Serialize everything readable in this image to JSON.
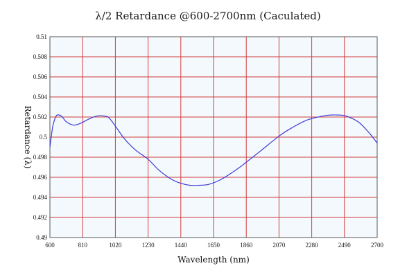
{
  "chart_data": {
    "type": "line",
    "title": "λ/2 Retardance @600-2700nm (Caculated)",
    "xlabel": "Wavelength (nm)",
    "ylabel": "Retardance (λ)",
    "xlim": [
      600,
      2700
    ],
    "ylim": [
      0.49,
      0.51
    ],
    "x_ticks": [
      600,
      810,
      1020,
      1230,
      1440,
      1650,
      1860,
      2070,
      2280,
      2490,
      2700
    ],
    "y_ticks": [
      0.49,
      0.492,
      0.494,
      0.496,
      0.498,
      0.5,
      0.502,
      0.504,
      0.506,
      0.508,
      0.51
    ],
    "y_tick_labels": [
      "0.49",
      "0.492",
      "0.494",
      "0.496",
      "0.498",
      "0.5",
      "0.502",
      "0.504",
      "0.506",
      "0.508",
      "0.51"
    ],
    "grid": true,
    "colors": {
      "line": "#3b3bd6",
      "grid": "#d23a3a",
      "plot_bg": "#f3f9fd"
    },
    "series": [
      {
        "x": [
          600,
          610,
          620,
          640,
          660,
          680,
          700,
          730,
          760,
          800,
          850,
          900,
          950,
          980,
          1020,
          1080,
          1150,
          1230,
          1300,
          1380,
          1440,
          1500,
          1550,
          1620,
          1700,
          1800,
          1860,
          1950,
          2070,
          2150,
          2250,
          2350,
          2400,
          2450,
          2500,
          2580,
          2650,
          2700
        ],
        "y": [
          0.499,
          0.5002,
          0.5012,
          0.5021,
          0.5022,
          0.502,
          0.5016,
          0.5013,
          0.5012,
          0.5014,
          0.5018,
          0.5021,
          0.5021,
          0.5019,
          0.5011,
          0.4998,
          0.4987,
          0.4978,
          0.4967,
          0.4958,
          0.4954,
          0.4952,
          0.4952,
          0.4953,
          0.4958,
          0.4968,
          0.4975,
          0.4986,
          0.5001,
          0.5009,
          0.5017,
          0.5021,
          0.5022,
          0.5022,
          0.5021,
          0.5015,
          0.5004,
          0.4994
        ]
      }
    ]
  }
}
